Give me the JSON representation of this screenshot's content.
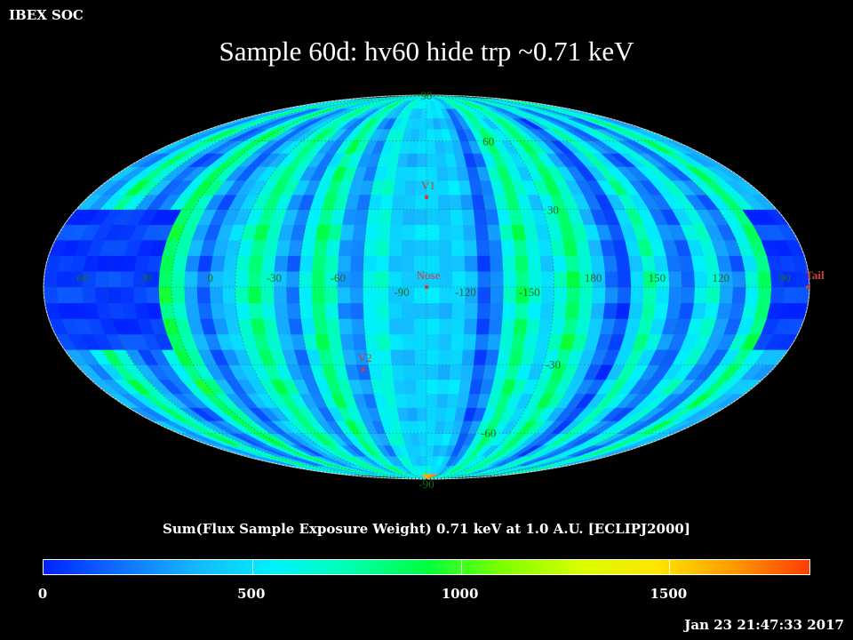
{
  "header": {
    "left_label": "IBEX SOC",
    "title": "Sample 60d: hv60 hide trp ~0.71 keV"
  },
  "map": {
    "projection": "Mollweide (ecliptic J2000)",
    "lon_labels": [
      {
        "text": "60",
        "lon": 60
      },
      {
        "text": "30",
        "lon": 30
      },
      {
        "text": "0",
        "lon": 0
      },
      {
        "text": "-30",
        "lon": -30
      },
      {
        "text": "-60",
        "lon": -60
      },
      {
        "text": "-90",
        "lon": -90
      },
      {
        "text": "-120",
        "lon": -120
      },
      {
        "text": "-150",
        "lon": -150
      },
      {
        "text": "180",
        "lon": 180
      },
      {
        "text": "150",
        "lon": 150
      },
      {
        "text": "120",
        "lon": 120
      },
      {
        "text": "90",
        "lon": 90
      }
    ],
    "lat_labels": [
      {
        "text": "90",
        "lat": 90
      },
      {
        "text": "60",
        "lat": 60
      },
      {
        "text": "30",
        "lat": 30
      },
      {
        "text": "-30",
        "lat": -30
      },
      {
        "text": "-60",
        "lat": -60
      },
      {
        "text": "-90",
        "lat": -90
      }
    ],
    "markers": [
      {
        "name": "V1",
        "label": "V1",
        "lon": -105,
        "lat": 35
      },
      {
        "name": "V2",
        "label": "V2",
        "lon": -72,
        "lat": -32
      },
      {
        "name": "Nose",
        "label": "Nose",
        "lon": -105,
        "lat": 0
      },
      {
        "name": "Tail",
        "label": "Tail",
        "lon": 75,
        "lat": 0
      }
    ],
    "marker_color": "#c8413c",
    "grid_color": "#1c6e1c"
  },
  "colorbar": {
    "title": "Sum(Flux Sample Exposure Weight)  0.71 keV at 1.0 A.U. [ECLIPJ2000]",
    "min": 0,
    "max": 1840,
    "tick_labels": [
      {
        "text": "0",
        "value": 0
      },
      {
        "text": "500",
        "value": 500
      },
      {
        "text": "1000",
        "value": 1000
      },
      {
        "text": "1500",
        "value": 1500
      }
    ],
    "colors": [
      "#0022ff",
      "#0f6fff",
      "#15b8ff",
      "#00f0ff",
      "#00ffb0",
      "#00ff40",
      "#7fff00",
      "#d8ff00",
      "#ffe600",
      "#ff9a00",
      "#ff3c00"
    ]
  },
  "footer": {
    "timestamp": "Jan 23 21:47:33 2017"
  }
}
